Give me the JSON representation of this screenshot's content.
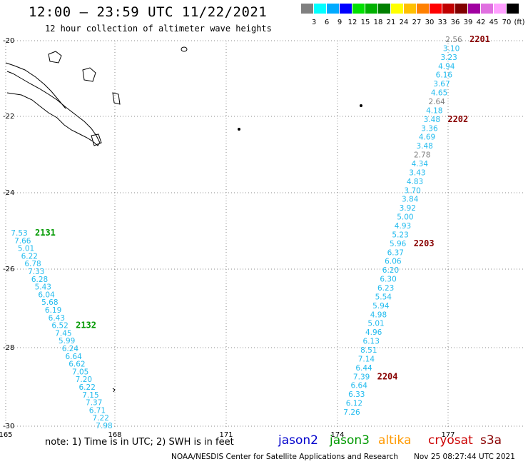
{
  "header": {
    "title": "12:00 – 23:59 UTC 11/22/2021",
    "subtitle": "12 hour collection of altimeter wave heights"
  },
  "scale": {
    "colors": [
      "#808080",
      "#00ffff",
      "#00aaff",
      "#0000ff",
      "#00e000",
      "#00b000",
      "#008000",
      "#ffff00",
      "#ffc000",
      "#ff8000",
      "#ff0000",
      "#c00000",
      "#800000",
      "#a000a0",
      "#e070e0",
      "#ffa0ff",
      "#000000"
    ],
    "labels": [
      "3",
      "6",
      "9",
      "12",
      "15",
      "18",
      "21",
      "24",
      "27",
      "30",
      "33",
      "36",
      "39",
      "42",
      "45",
      "70",
      "(ft)"
    ]
  },
  "axes": {
    "lon_ticks": [
      "165",
      "168",
      "171",
      "174",
      "177"
    ],
    "lat_ticks": [
      "-20",
      "-22",
      "-24",
      "-26",
      "-28",
      "-30"
    ]
  },
  "colors": {
    "cyan": "#22bbee",
    "gray": "#808080",
    "green": "#009900",
    "darkred": "#880000",
    "grid": "#888888"
  },
  "tracks": [
    {
      "id": "east",
      "points": [
        [
          "2.56",
          "gray"
        ],
        [
          "3.10",
          "cyan"
        ],
        [
          "3.23",
          "cyan"
        ],
        [
          "4.94",
          "cyan"
        ],
        [
          "6.16",
          "cyan"
        ],
        [
          "3.67",
          "cyan"
        ],
        [
          "4.65",
          "cyan"
        ],
        [
          "2.64",
          "gray"
        ],
        [
          "4.18",
          "cyan"
        ],
        [
          "3.48",
          "cyan"
        ],
        [
          "3.36",
          "cyan"
        ],
        [
          "4.69",
          "cyan"
        ],
        [
          "3.48",
          "cyan"
        ],
        [
          "2.78",
          "gray"
        ],
        [
          "4.34",
          "cyan"
        ],
        [
          "3.43",
          "cyan"
        ],
        [
          "4.83",
          "cyan"
        ],
        [
          "3.70",
          "cyan"
        ],
        [
          "3.84",
          "cyan"
        ],
        [
          "3.92",
          "cyan"
        ],
        [
          "5.00",
          "cyan"
        ],
        [
          "4.93",
          "cyan"
        ],
        [
          "5.23",
          "cyan"
        ],
        [
          "5.96",
          "cyan"
        ],
        [
          "6.37",
          "cyan"
        ],
        [
          "6.06",
          "cyan"
        ],
        [
          "6.20",
          "cyan"
        ],
        [
          "6.30",
          "cyan"
        ],
        [
          "6.23",
          "cyan"
        ],
        [
          "5.54",
          "cyan"
        ],
        [
          "5.94",
          "cyan"
        ],
        [
          "4.98",
          "cyan"
        ],
        [
          "5.01",
          "cyan"
        ],
        [
          "4.96",
          "cyan"
        ],
        [
          "6.13",
          "cyan"
        ],
        [
          "8.51",
          "cyan"
        ],
        [
          "7.14",
          "cyan"
        ],
        [
          "6.44",
          "cyan"
        ],
        [
          "7.39",
          "cyan"
        ],
        [
          "6.64",
          "cyan"
        ],
        [
          "6.33",
          "cyan"
        ],
        [
          "6.12",
          "cyan"
        ],
        [
          "7.26",
          "cyan"
        ]
      ],
      "times": [
        {
          "label": "2201",
          "index": 0,
          "color": "darkred"
        },
        {
          "label": "2202",
          "index": 9,
          "color": "darkred"
        },
        {
          "label": "2203",
          "index": 23,
          "color": "darkred"
        },
        {
          "label": "2204",
          "index": 38,
          "color": "darkred"
        }
      ]
    },
    {
      "id": "west",
      "points": [
        [
          "7.53",
          "cyan"
        ],
        [
          "7.66",
          "cyan"
        ],
        [
          "5.01",
          "cyan"
        ],
        [
          "6.22",
          "cyan"
        ],
        [
          "6.78",
          "cyan"
        ],
        [
          "7.33",
          "cyan"
        ],
        [
          "6.28",
          "cyan"
        ],
        [
          "5.43",
          "cyan"
        ],
        [
          "6.04",
          "cyan"
        ],
        [
          "5.68",
          "cyan"
        ],
        [
          "6.19",
          "cyan"
        ],
        [
          "6.43",
          "cyan"
        ],
        [
          "6.52",
          "cyan"
        ],
        [
          "7.45",
          "cyan"
        ],
        [
          "5.99",
          "cyan"
        ],
        [
          "6.24",
          "cyan"
        ],
        [
          "6.64",
          "cyan"
        ],
        [
          "6.62",
          "cyan"
        ],
        [
          "7.05",
          "cyan"
        ],
        [
          "7.20",
          "cyan"
        ],
        [
          "6.22",
          "cyan"
        ],
        [
          "7.15",
          "cyan"
        ],
        [
          "7.37",
          "cyan"
        ],
        [
          "6.71",
          "cyan"
        ],
        [
          "7.22",
          "cyan"
        ],
        [
          "7.98",
          "cyan"
        ]
      ],
      "times": [
        {
          "label": "2131",
          "index": 0,
          "color": "green"
        },
        {
          "label": "2132",
          "index": 12,
          "color": "green"
        }
      ]
    }
  ],
  "footer": {
    "note": "note:  1) Time is in UTC;  2) SWH is in feet",
    "satellites": [
      {
        "label": "jason2",
        "color": "#0000cc"
      },
      {
        "label": "jason3",
        "color": "#009900"
      },
      {
        "label": "altika",
        "color": "#ff9900"
      },
      {
        "label": "cryosat",
        "color": "#cc0000"
      },
      {
        "label": "s3a",
        "color": "#880000"
      }
    ],
    "credit": "NOAA/NESDIS Center for Satellite Applications and Research",
    "timestamp": "Nov 25 08:27:44 UTC 2021"
  }
}
